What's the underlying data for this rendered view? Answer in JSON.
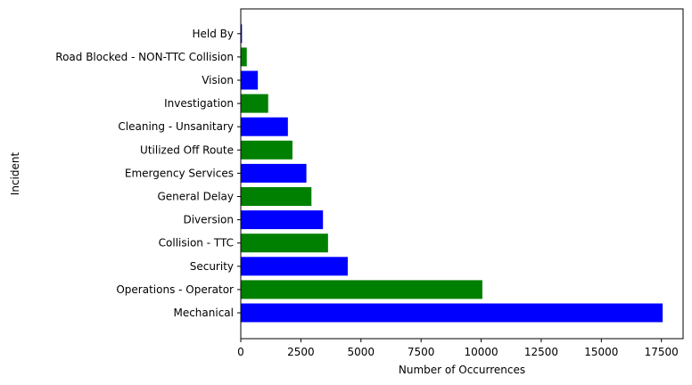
{
  "chart_data": {
    "type": "bar",
    "orientation": "horizontal",
    "categories": [
      "Mechanical",
      "Operations - Operator",
      "Security",
      "Collision - TTC",
      "Diversion",
      "General Delay",
      "Emergency Services",
      "Utilized Off Route",
      "Cleaning - Unsanitary",
      "Investigation",
      "Vision",
      "Road Blocked - NON-TTC Collision",
      "Held By"
    ],
    "values": [
      17550,
      10050,
      4450,
      3630,
      3420,
      2940,
      2730,
      2150,
      1960,
      1140,
      710,
      250,
      50
    ],
    "colors": [
      "#0000ff",
      "#008000",
      "#0000ff",
      "#008000",
      "#0000ff",
      "#008000",
      "#0000ff",
      "#008000",
      "#0000ff",
      "#008000",
      "#0000ff",
      "#008000",
      "#0000ff"
    ],
    "xlabel": "Number of Occurrences",
    "ylabel": "Incident",
    "xlim": [
      0,
      18400
    ],
    "xticks": [
      0,
      2500,
      5000,
      7500,
      10000,
      12500,
      15000,
      17500
    ],
    "xtick_labels": [
      "0",
      "2500",
      "5000",
      "7500",
      "10000",
      "12500",
      "15000",
      "17500"
    ],
    "grid": false,
    "legend": "none"
  }
}
